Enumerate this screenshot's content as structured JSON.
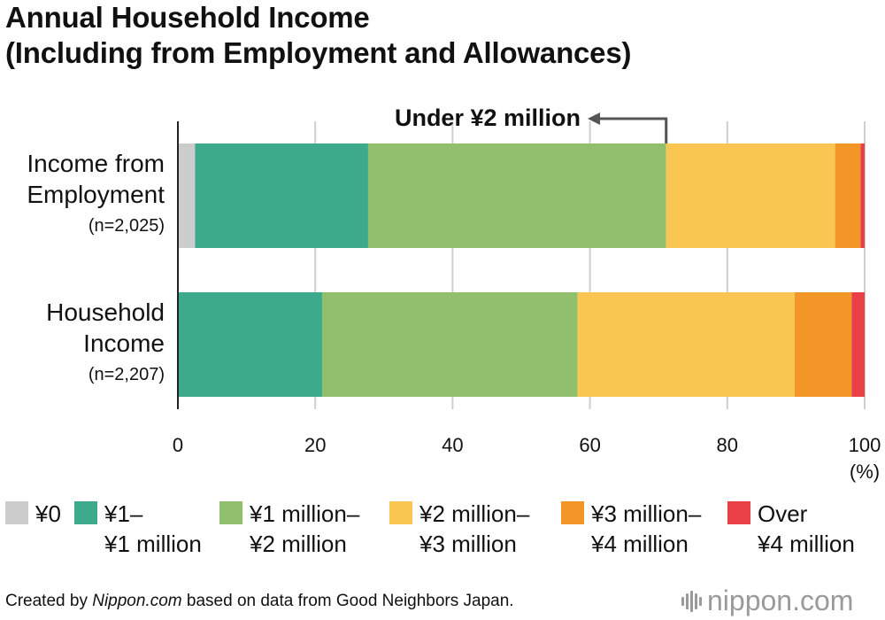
{
  "title_line1": "Annual Household Income",
  "title_line2": "(Including from Employment and Allowances)",
  "chart_data": {
    "type": "bar",
    "orientation": "horizontal",
    "stacked": true,
    "categories": [
      {
        "name_lines": [
          "Income from",
          "Employment"
        ],
        "n": "(n=2,025)"
      },
      {
        "name_lines": [
          "Household",
          "Income"
        ],
        "n": "(n=2,207)"
      }
    ],
    "series": [
      {
        "name": "¥0",
        "label_lines": [
          "¥0"
        ],
        "color": "#cccccc",
        "values": [
          2.5,
          0.0
        ]
      },
      {
        "name": "¥1–¥1 million",
        "label_lines": [
          "¥1–",
          "¥1 million"
        ],
        "color": "#3eaa8c",
        "values": [
          25.2,
          21.0
        ]
      },
      {
        "name": "¥1 million–¥2 million",
        "label_lines": [
          "¥1 million–",
          "¥2 million"
        ],
        "color": "#90c06e",
        "values": [
          43.4,
          37.2
        ]
      },
      {
        "name": "¥2 million–¥3 million",
        "label_lines": [
          "¥2 million–",
          "¥3 million"
        ],
        "color": "#f8c651",
        "values": [
          24.6,
          31.6
        ]
      },
      {
        "name": "¥3 million–¥4 million",
        "label_lines": [
          "¥3 million–",
          "¥4 million"
        ],
        "color": "#f29627",
        "values": [
          3.7,
          8.3
        ]
      },
      {
        "name": "Over ¥4 million",
        "label_lines": [
          "Over",
          "¥4 million"
        ],
        "color": "#e84045",
        "values": [
          0.6,
          1.9
        ]
      }
    ],
    "xlim": [
      0,
      100
    ],
    "xticks": [
      0,
      20,
      40,
      60,
      80,
      100
    ],
    "xunit": "(%)",
    "grid": true,
    "annotation": {
      "text": "Under ¥2 million",
      "at_category": 0,
      "marks_end_of_series": 2
    }
  },
  "footer": {
    "prefix": "Created by ",
    "source_name": "Nippon.com",
    "suffix": " based on data from Good Neighbors Japan."
  },
  "logo_text": "nippon.com"
}
